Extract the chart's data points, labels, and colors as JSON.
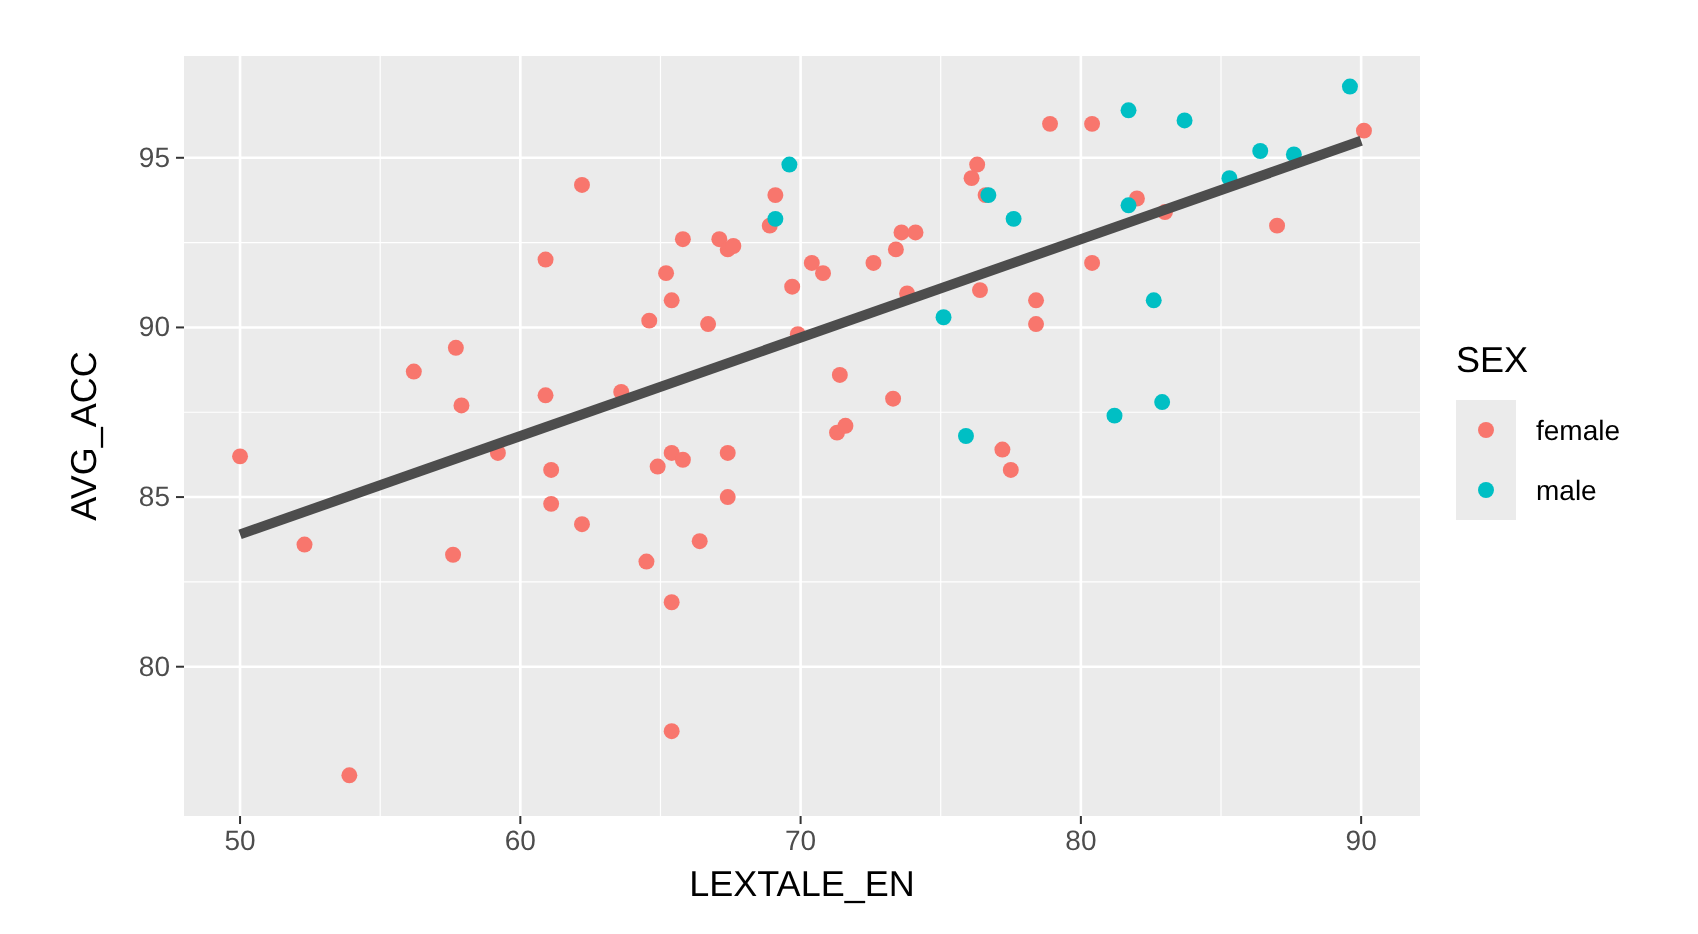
{
  "chart_data": {
    "type": "scatter",
    "xlabel": "LEXTALE_EN",
    "ylabel": "AVG_ACC",
    "legend_title": "SEX",
    "legend": "right",
    "grid": true,
    "xlim": [
      48.0,
      92.1
    ],
    "ylim": [
      75.6,
      98.0
    ],
    "xticks": [
      50,
      60,
      70,
      80,
      90
    ],
    "yticks": [
      80,
      85,
      90,
      95
    ],
    "series": [
      {
        "name": "female",
        "color": "#f8766d",
        "marker": "circle",
        "x": [
          50.0,
          52.3,
          53.9,
          56.2,
          57.6,
          57.7,
          57.9,
          59.2,
          60.9,
          60.9,
          61.1,
          61.1,
          62.2,
          62.2,
          63.6,
          64.5,
          64.6,
          64.9,
          65.2,
          65.4,
          65.4,
          65.4,
          65.4,
          65.8,
          65.8,
          66.4,
          66.7,
          67.1,
          67.4,
          67.6,
          67.4,
          67.4,
          68.9,
          69.1,
          69.7,
          69.9,
          70.4,
          70.8,
          71.3,
          71.4,
          71.6,
          72.6,
          73.3,
          73.4,
          73.6,
          73.8,
          74.1,
          76.1,
          76.3,
          76.4,
          76.6,
          77.2,
          77.5,
          78.4,
          78.4,
          78.9,
          80.4,
          80.4,
          82.0,
          83.0,
          87.0,
          90.1
        ],
        "values": [
          86.2,
          83.6,
          76.8,
          88.7,
          83.3,
          89.4,
          87.7,
          86.3,
          88.0,
          92.0,
          84.8,
          85.8,
          84.2,
          94.2,
          88.1,
          83.1,
          90.2,
          85.9,
          91.6,
          86.3,
          90.8,
          81.9,
          78.1,
          92.6,
          86.1,
          83.7,
          90.1,
          92.6,
          92.3,
          92.4,
          86.3,
          85.0,
          93.0,
          93.9,
          91.2,
          89.8,
          91.9,
          91.6,
          86.9,
          88.6,
          87.1,
          91.9,
          87.9,
          92.3,
          92.8,
          91.0,
          92.8,
          94.4,
          94.8,
          91.1,
          93.9,
          86.4,
          85.8,
          90.8,
          90.1,
          96.0,
          96.0,
          91.9,
          93.8,
          93.4,
          93.0,
          95.8
        ]
      },
      {
        "name": "male",
        "color": "#00bfc4",
        "marker": "circle",
        "x": [
          69.1,
          69.6,
          75.1,
          75.9,
          76.7,
          77.6,
          81.2,
          81.7,
          81.7,
          82.6,
          82.9,
          83.7,
          85.3,
          86.4,
          87.6,
          89.6
        ],
        "values": [
          93.2,
          94.8,
          90.3,
          86.8,
          93.9,
          93.2,
          87.4,
          96.4,
          93.6,
          90.8,
          87.8,
          96.1,
          94.4,
          95.2,
          95.1,
          97.1
        ]
      },
      {
        "type": "line",
        "color": "#4d4d4d",
        "x": [
          50,
          90
        ],
        "values": [
          83.9,
          95.5
        ],
        "marker": "none"
      }
    ]
  }
}
